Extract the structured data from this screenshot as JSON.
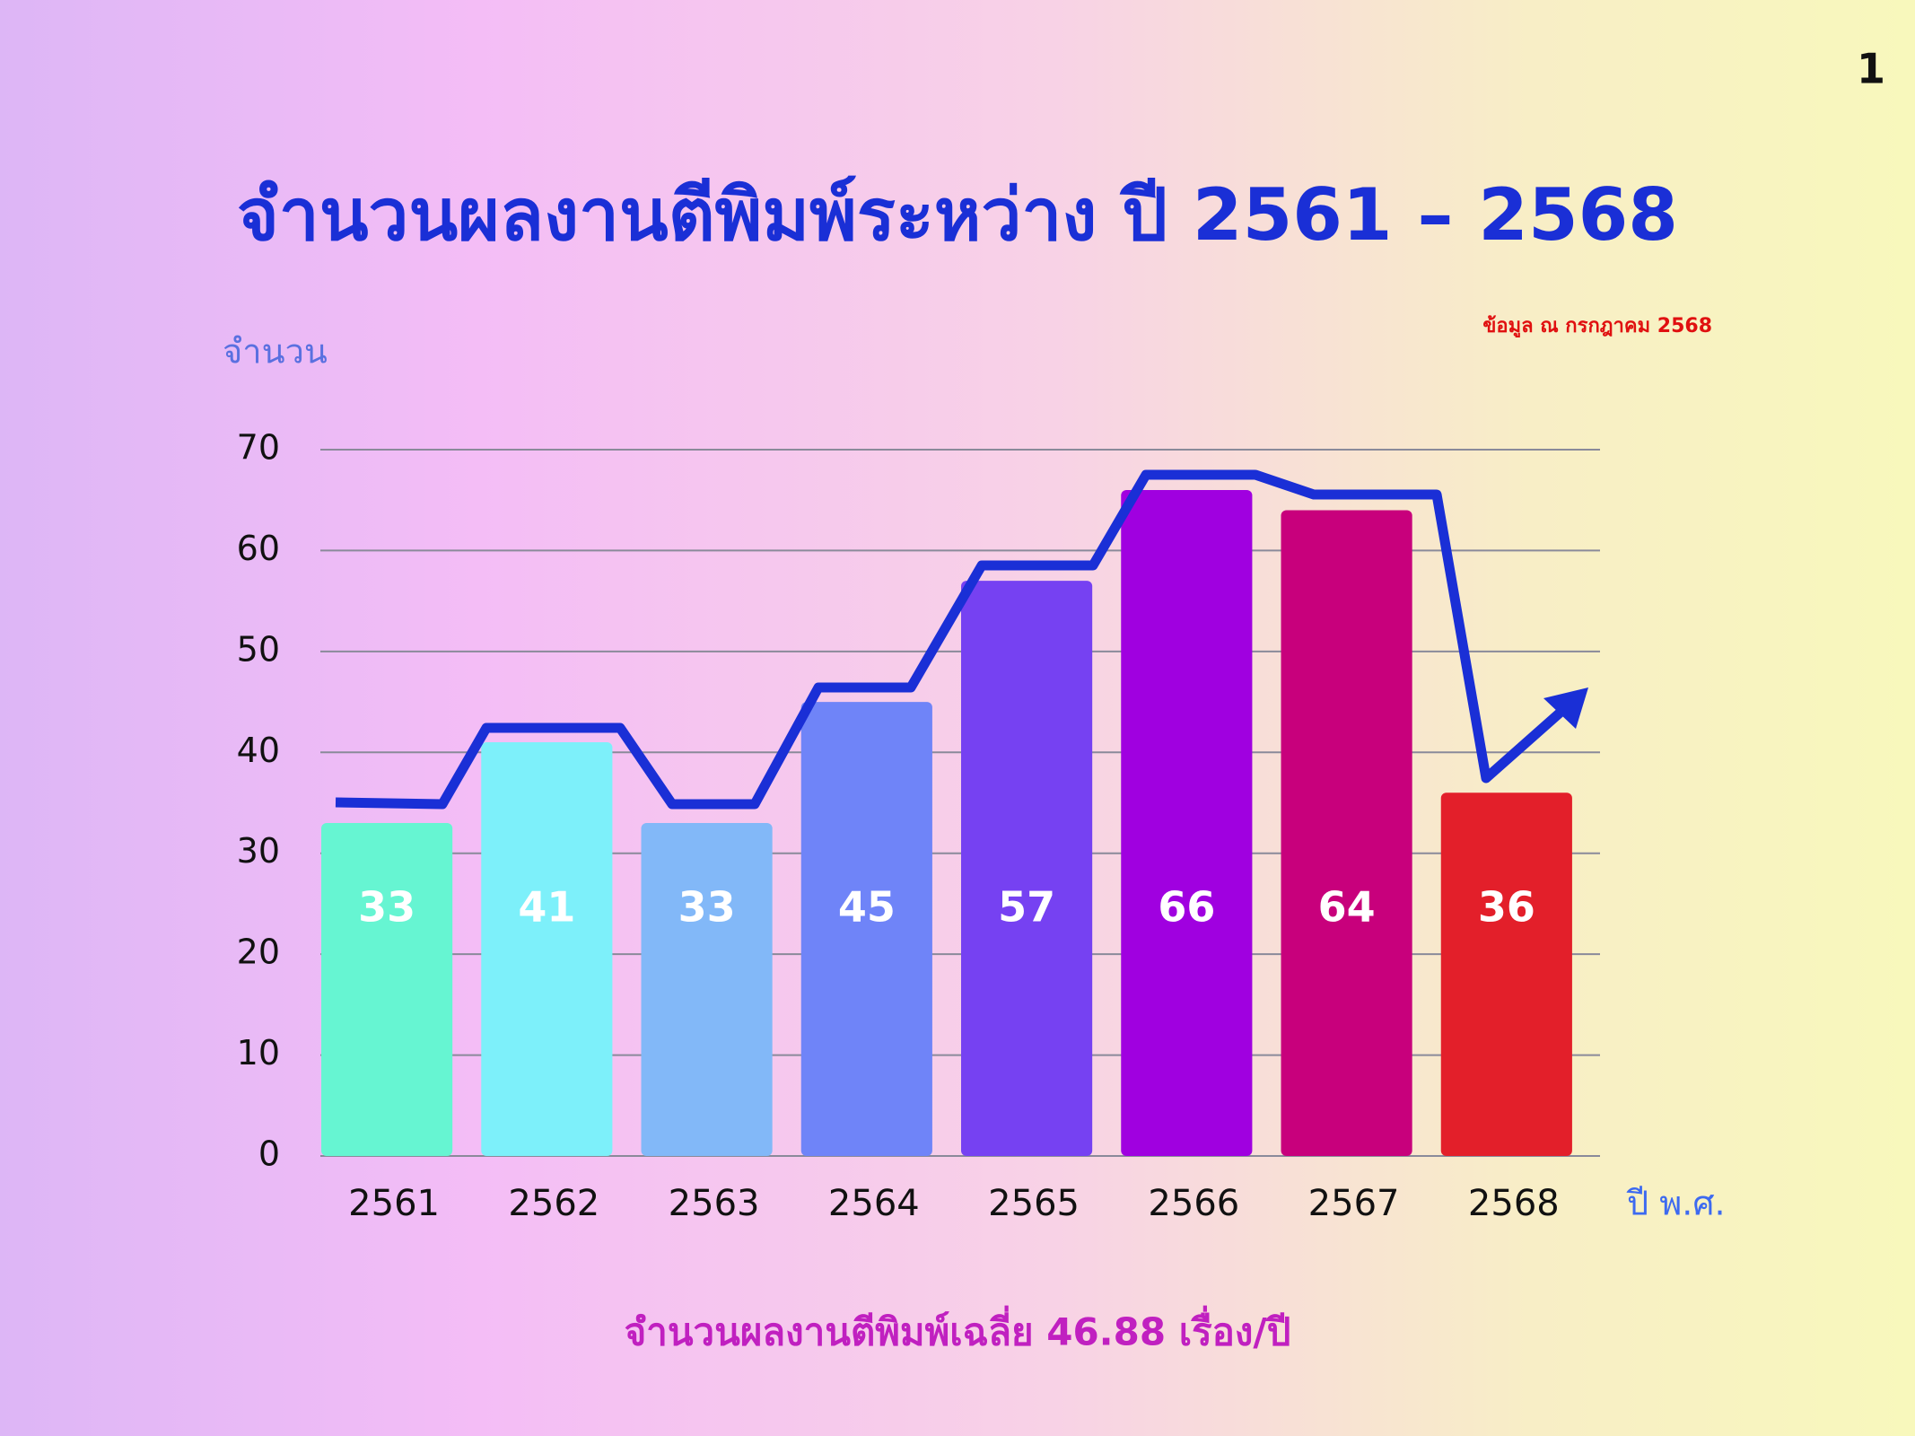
{
  "page_number": "1",
  "chart_data": {
    "type": "bar",
    "title": "จำนวนผลงานตีพิมพ์ระหว่าง ปี 2561 – 2568",
    "note": "ข้อมูล ณ กรกฎาคม 2568",
    "y_label": "จำนวน",
    "x_label": "ปี พ.ศ.",
    "categories": [
      "2561",
      "2562",
      "2563",
      "2564",
      "2565",
      "2566",
      "2567",
      "2568"
    ],
    "values": [
      33,
      41,
      33,
      45,
      57,
      66,
      64,
      36
    ],
    "colors": [
      "#66f5d2",
      "#7df0fa",
      "#82b8f8",
      "#6f84f8",
      "#7641f2",
      "#a000e0",
      "#c8007c",
      "#e31f2a"
    ],
    "ylim": [
      0,
      70
    ],
    "yticks": [
      0,
      10,
      20,
      30,
      40,
      50,
      60,
      70
    ],
    "grid": true,
    "footer": "จำนวนผลงานตีพิมพ์เฉลี่ย 46.88 เรื่อง/ปี"
  }
}
